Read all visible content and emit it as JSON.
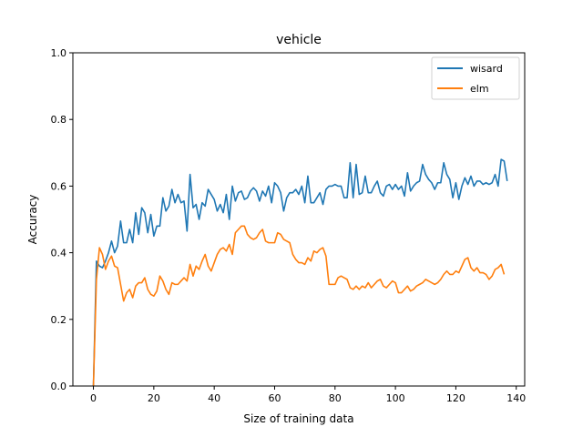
{
  "chart_data": {
    "type": "line",
    "title": "vehicle",
    "xlabel": "Size of training data",
    "ylabel": "Accuracy",
    "xlim": [
      -6.8,
      142.8
    ],
    "ylim": [
      0.0,
      1.0
    ],
    "xticks": [
      0,
      20,
      40,
      60,
      80,
      100,
      120,
      140
    ],
    "yticks": [
      0.0,
      0.2,
      0.4,
      0.6,
      0.8,
      1.0
    ],
    "xtick_labels": [
      "0",
      "20",
      "40",
      "60",
      "80",
      "100",
      "120",
      "140"
    ],
    "ytick_labels": [
      "0.0",
      "0.2",
      "0.4",
      "0.6",
      "0.8",
      "1.0"
    ],
    "grid": false,
    "legend_position": "top-right",
    "series": [
      {
        "name": "wisard",
        "color": "#1f77b4",
        "values": [
          0.0,
          0.375,
          0.36,
          0.355,
          0.375,
          0.4,
          0.435,
          0.4,
          0.42,
          0.495,
          0.43,
          0.43,
          0.47,
          0.43,
          0.52,
          0.455,
          0.535,
          0.52,
          0.46,
          0.515,
          0.45,
          0.48,
          0.48,
          0.565,
          0.525,
          0.54,
          0.59,
          0.55,
          0.575,
          0.55,
          0.555,
          0.465,
          0.635,
          0.535,
          0.545,
          0.5,
          0.55,
          0.54,
          0.59,
          0.575,
          0.56,
          0.525,
          0.545,
          0.52,
          0.575,
          0.5,
          0.6,
          0.555,
          0.58,
          0.585,
          0.56,
          0.565,
          0.585,
          0.595,
          0.585,
          0.555,
          0.585,
          0.57,
          0.6,
          0.55,
          0.61,
          0.6,
          0.58,
          0.525,
          0.565,
          0.58,
          0.58,
          0.59,
          0.575,
          0.6,
          0.55,
          0.63,
          0.55,
          0.55,
          0.565,
          0.58,
          0.545,
          0.59,
          0.6,
          0.6,
          0.605,
          0.6,
          0.6,
          0.565,
          0.565,
          0.67,
          0.565,
          0.665,
          0.575,
          0.58,
          0.63,
          0.58,
          0.58,
          0.6,
          0.615,
          0.58,
          0.57,
          0.6,
          0.605,
          0.59,
          0.605,
          0.59,
          0.6,
          0.57,
          0.64,
          0.585,
          0.6,
          0.61,
          0.615,
          0.665,
          0.635,
          0.62,
          0.61,
          0.59,
          0.61,
          0.61,
          0.67,
          0.635,
          0.62,
          0.565,
          0.61,
          0.56,
          0.6,
          0.625,
          0.605,
          0.63,
          0.6,
          0.615,
          0.615,
          0.605,
          0.61,
          0.605,
          0.61,
          0.635,
          0.6,
          0.68,
          0.675,
          0.615
        ]
      },
      {
        "name": "elm",
        "color": "#ff7f0e",
        "values": [
          0.0,
          0.32,
          0.415,
          0.395,
          0.35,
          0.375,
          0.39,
          0.36,
          0.355,
          0.305,
          0.255,
          0.28,
          0.29,
          0.265,
          0.3,
          0.31,
          0.31,
          0.325,
          0.29,
          0.275,
          0.27,
          0.285,
          0.33,
          0.315,
          0.29,
          0.275,
          0.31,
          0.305,
          0.305,
          0.315,
          0.325,
          0.315,
          0.365,
          0.33,
          0.36,
          0.35,
          0.375,
          0.395,
          0.36,
          0.345,
          0.37,
          0.395,
          0.41,
          0.415,
          0.405,
          0.425,
          0.395,
          0.46,
          0.47,
          0.48,
          0.48,
          0.455,
          0.445,
          0.44,
          0.445,
          0.46,
          0.47,
          0.435,
          0.43,
          0.43,
          0.43,
          0.46,
          0.455,
          0.44,
          0.435,
          0.43,
          0.395,
          0.38,
          0.37,
          0.37,
          0.365,
          0.385,
          0.375,
          0.405,
          0.4,
          0.41,
          0.415,
          0.39,
          0.305,
          0.305,
          0.305,
          0.325,
          0.33,
          0.325,
          0.32,
          0.295,
          0.29,
          0.3,
          0.29,
          0.3,
          0.295,
          0.31,
          0.295,
          0.305,
          0.315,
          0.32,
          0.3,
          0.295,
          0.305,
          0.315,
          0.31,
          0.28,
          0.28,
          0.29,
          0.3,
          0.285,
          0.29,
          0.3,
          0.305,
          0.31,
          0.32,
          0.315,
          0.31,
          0.305,
          0.31,
          0.32,
          0.335,
          0.345,
          0.335,
          0.335,
          0.345,
          0.34,
          0.36,
          0.38,
          0.385,
          0.355,
          0.345,
          0.355,
          0.34,
          0.34,
          0.335,
          0.32,
          0.33,
          0.35,
          0.355,
          0.365,
          0.335
        ]
      }
    ]
  }
}
